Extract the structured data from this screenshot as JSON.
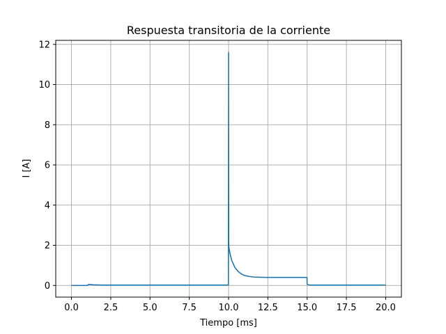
{
  "chart_data": {
    "type": "line",
    "title": "Respuesta transitoria de la corriente",
    "xlabel": "Tiempo [ms]",
    "ylabel": "I [A]",
    "xlim": [
      -1.0,
      21.0
    ],
    "ylim": [
      -0.58,
      12.2
    ],
    "xticks": [
      0.0,
      2.5,
      5.0,
      7.5,
      10.0,
      12.5,
      15.0,
      17.5,
      20.0
    ],
    "xtick_labels": [
      "0.0",
      "2.5",
      "5.0",
      "7.5",
      "10.0",
      "12.5",
      "15.0",
      "17.5",
      "20.0"
    ],
    "yticks": [
      0,
      2,
      4,
      6,
      8,
      10,
      12
    ],
    "ytick_labels": [
      "0",
      "2",
      "4",
      "6",
      "8",
      "10",
      "12"
    ],
    "grid": true,
    "series": [
      {
        "color": "#1f77b4",
        "x": [
          0.0,
          0.5,
          1.0,
          1.05,
          1.1,
          1.2,
          1.3,
          1.4,
          1.6,
          2.0,
          3.0,
          5.0,
          7.5,
          9.99,
          10.0,
          10.01,
          10.02,
          10.1,
          10.2,
          10.4,
          10.6,
          10.8,
          11.0,
          11.3,
          11.6,
          12.0,
          12.5,
          13.0,
          14.0,
          14.99,
          15.0,
          15.05,
          15.1,
          15.2,
          17.5,
          20.0
        ],
        "y": [
          0.0,
          0.0,
          0.0,
          0.02,
          0.06,
          0.05,
          0.04,
          0.03,
          0.03,
          0.02,
          0.02,
          0.02,
          0.02,
          0.02,
          11.6,
          2.2,
          1.9,
          1.55,
          1.25,
          0.9,
          0.7,
          0.58,
          0.5,
          0.45,
          0.42,
          0.41,
          0.4,
          0.4,
          0.4,
          0.4,
          0.06,
          0.04,
          0.03,
          0.02,
          0.02,
          0.02
        ]
      }
    ]
  }
}
